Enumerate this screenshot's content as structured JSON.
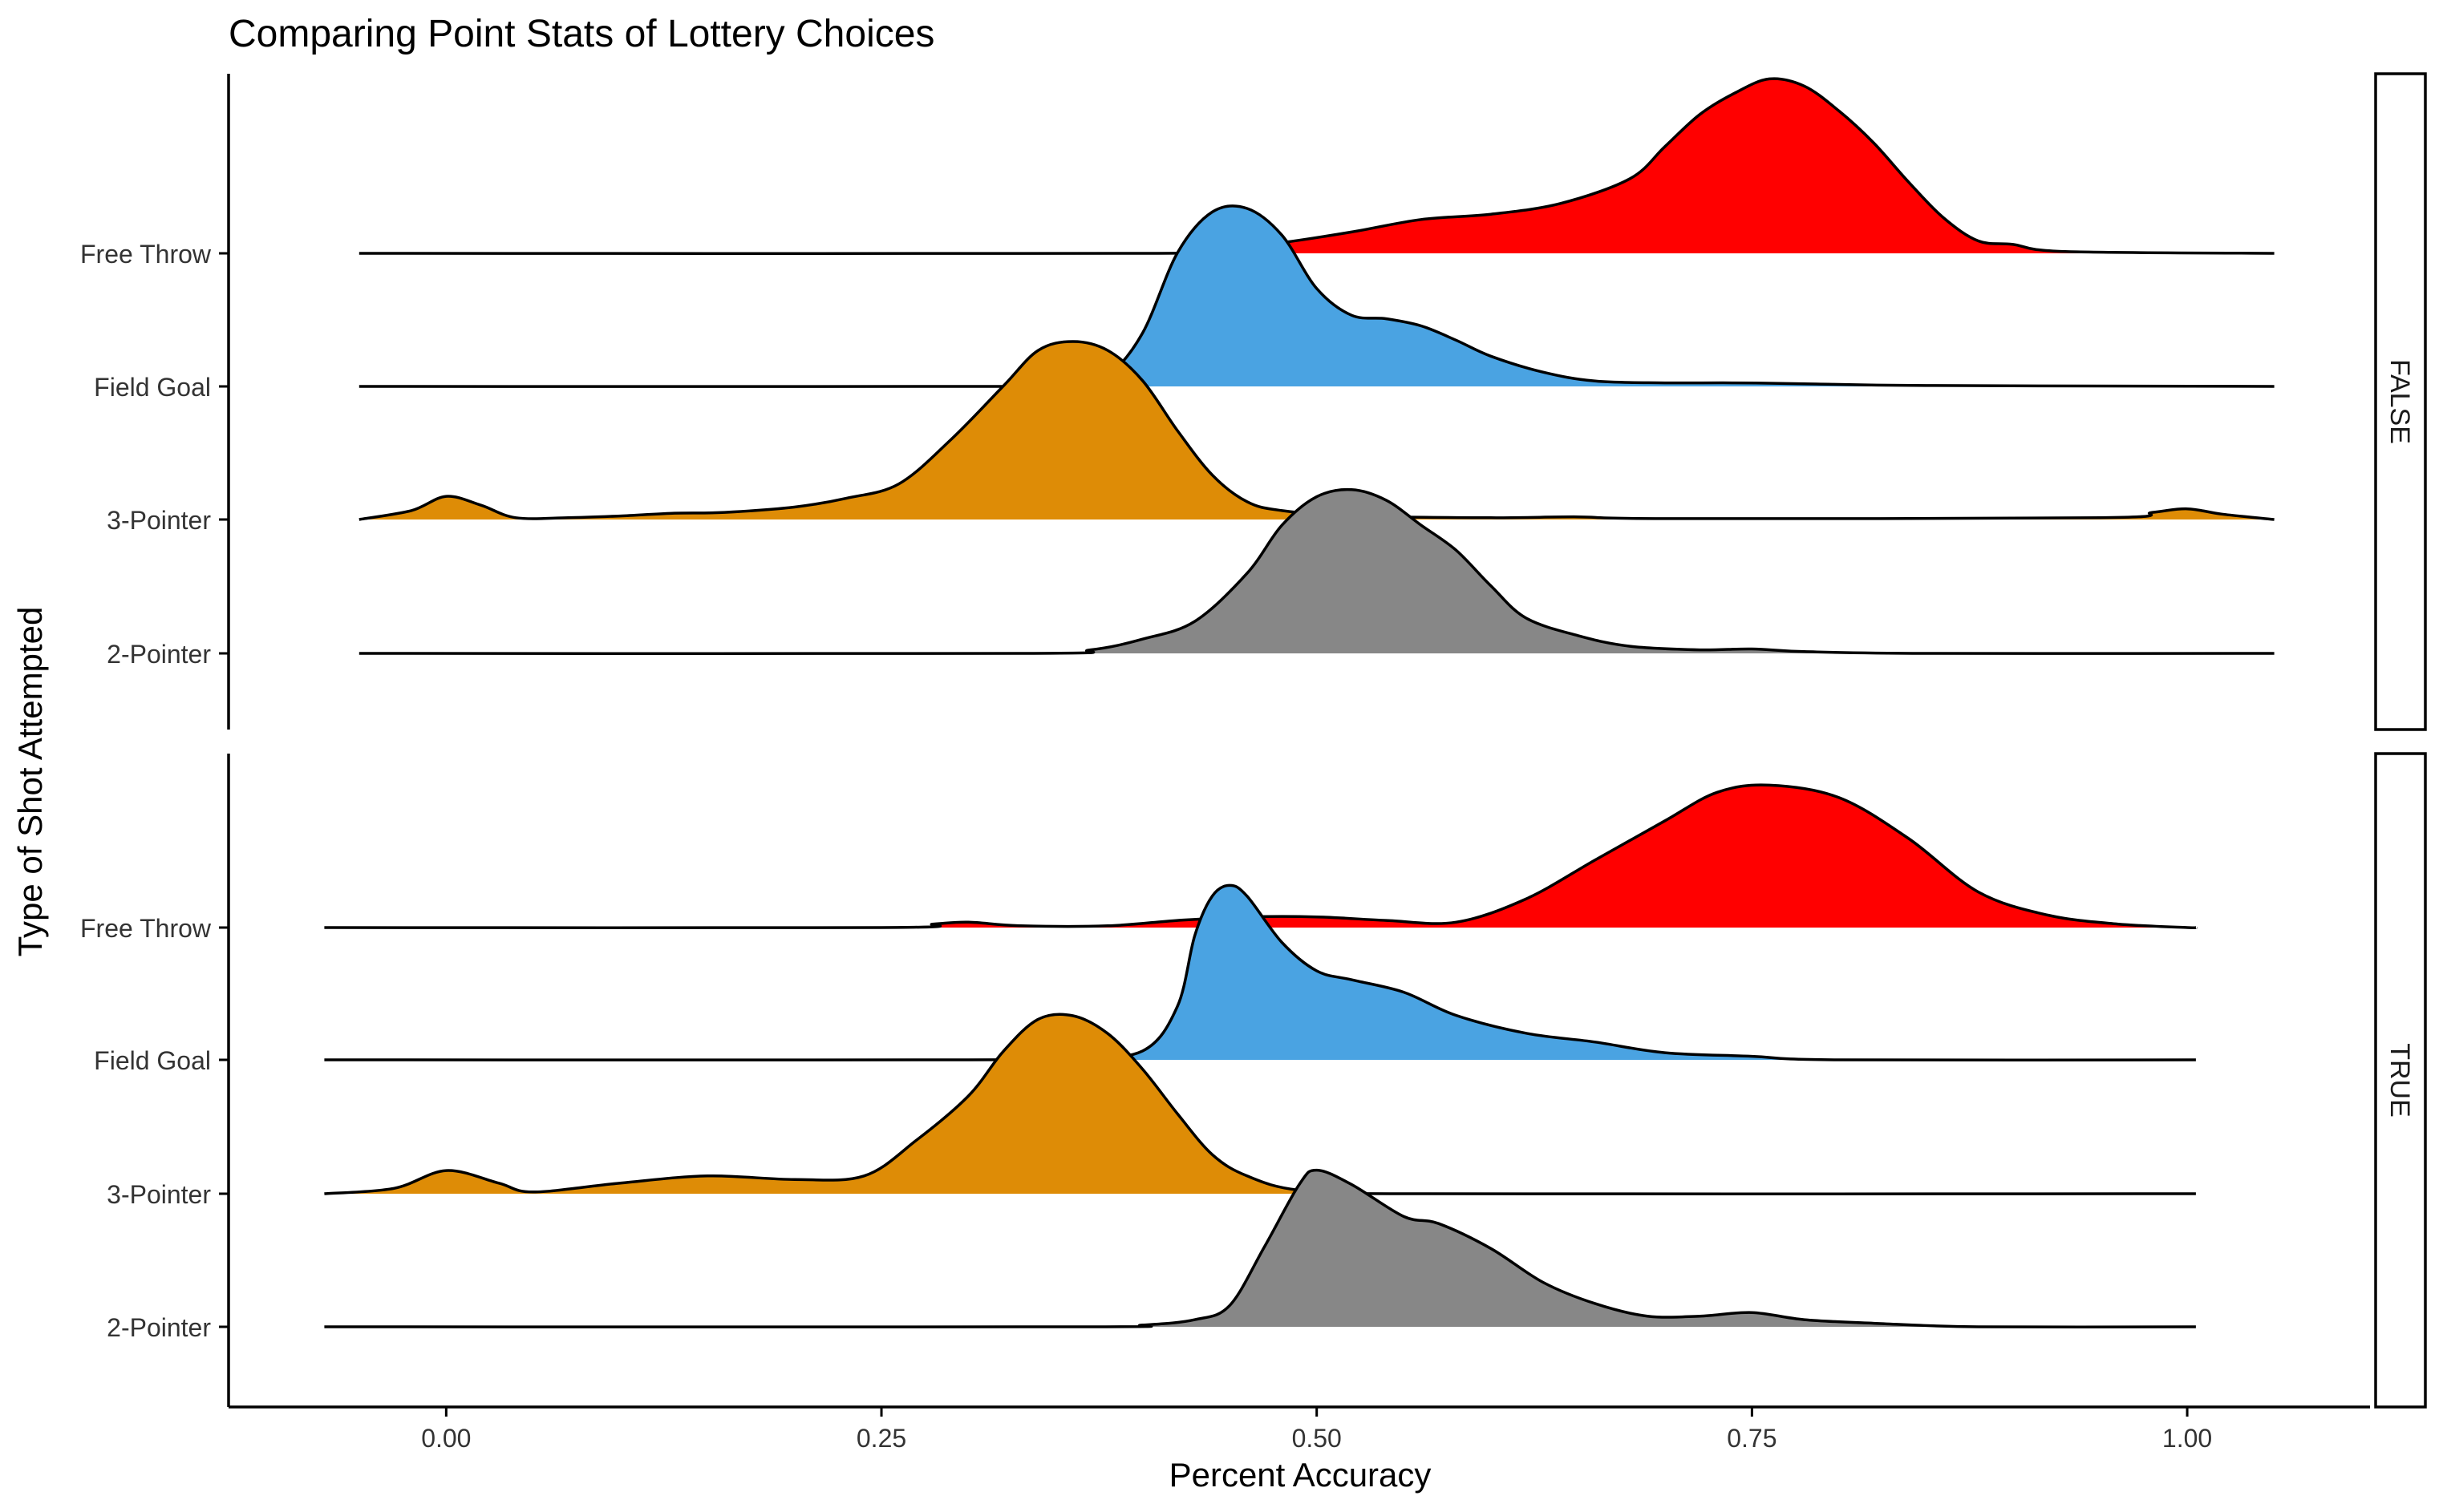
{
  "chart_data": {
    "type": "ridgeline",
    "title": "Comparing Point Stats of Lottery Choices",
    "xlabel": "Percent Accuracy",
    "ylabel": "Type of Shot Attempted",
    "xlim": [
      -0.125,
      1.105
    ],
    "xticks": [
      0,
      0.25,
      0.5,
      0.75,
      1.0
    ],
    "xtick_labels": [
      "0.00",
      "0.25",
      "0.50",
      "0.75",
      "1.00"
    ],
    "categories": [
      "2-Pointer",
      "3-Pointer",
      "Field Goal",
      "Free Throw"
    ],
    "colors": {
      "Free Throw": "#FF0000",
      "Field Goal": "#4AA3E2",
      "3-Pointer": "#DE8C06",
      "2-Pointer": "#878787"
    },
    "grid": false,
    "legend": "none",
    "facets": [
      {
        "label": "FALSE",
        "range": [
          -0.05,
          1.05
        ],
        "series": [
          {
            "name": "2-Pointer",
            "points": [
              [
                -0.05,
                0
              ],
              [
                0.33,
                0
              ],
              [
                0.37,
                0.02
              ],
              [
                0.4,
                0.08
              ],
              [
                0.43,
                0.18
              ],
              [
                0.46,
                0.45
              ],
              [
                0.48,
                0.72
              ],
              [
                0.5,
                0.88
              ],
              [
                0.52,
                0.92
              ],
              [
                0.54,
                0.86
              ],
              [
                0.56,
                0.72
              ],
              [
                0.58,
                0.58
              ],
              [
                0.6,
                0.38
              ],
              [
                0.62,
                0.2
              ],
              [
                0.65,
                0.1
              ],
              [
                0.68,
                0.04
              ],
              [
                0.72,
                0.02
              ],
              [
                0.75,
                0.025
              ],
              [
                0.78,
                0.01
              ],
              [
                0.85,
                0
              ],
              [
                1.05,
                0
              ]
            ]
          },
          {
            "name": "3-Pointer",
            "points": [
              [
                -0.05,
                0
              ],
              [
                -0.02,
                0.05
              ],
              [
                0.0,
                0.13
              ],
              [
                0.02,
                0.08
              ],
              [
                0.04,
                0.01
              ],
              [
                0.07,
                0.01
              ],
              [
                0.1,
                0.02
              ],
              [
                0.13,
                0.035
              ],
              [
                0.16,
                0.04
              ],
              [
                0.2,
                0.07
              ],
              [
                0.23,
                0.12
              ],
              [
                0.26,
                0.2
              ],
              [
                0.29,
                0.45
              ],
              [
                0.32,
                0.75
              ],
              [
                0.34,
                0.95
              ],
              [
                0.36,
                1.0
              ],
              [
                0.38,
                0.95
              ],
              [
                0.4,
                0.78
              ],
              [
                0.42,
                0.5
              ],
              [
                0.44,
                0.25
              ],
              [
                0.46,
                0.1
              ],
              [
                0.48,
                0.05
              ],
              [
                0.52,
                0.02
              ],
              [
                0.6,
                0.01
              ],
              [
                0.65,
                0.015
              ],
              [
                0.7,
                0.005
              ],
              [
                0.95,
                0.01
              ],
              [
                0.98,
                0.04
              ],
              [
                1.0,
                0.06
              ],
              [
                1.02,
                0.03
              ],
              [
                1.05,
                0
              ]
            ]
          },
          {
            "name": "Field Goal",
            "points": [
              [
                -0.05,
                0
              ],
              [
                0.34,
                0
              ],
              [
                0.36,
                0.01
              ],
              [
                0.38,
                0.06
              ],
              [
                0.4,
                0.3
              ],
              [
                0.42,
                0.75
              ],
              [
                0.44,
                0.98
              ],
              [
                0.46,
                1.0
              ],
              [
                0.48,
                0.85
              ],
              [
                0.5,
                0.55
              ],
              [
                0.52,
                0.4
              ],
              [
                0.54,
                0.38
              ],
              [
                0.56,
                0.34
              ],
              [
                0.58,
                0.26
              ],
              [
                0.6,
                0.17
              ],
              [
                0.63,
                0.08
              ],
              [
                0.66,
                0.03
              ],
              [
                0.7,
                0.02
              ],
              [
                0.74,
                0.02
              ],
              [
                0.78,
                0.015
              ],
              [
                0.85,
                0.005
              ],
              [
                1.05,
                0
              ]
            ]
          },
          {
            "name": "Free Throw",
            "points": [
              [
                -0.05,
                0
              ],
              [
                0.4,
                0
              ],
              [
                0.44,
                0.02
              ],
              [
                0.48,
                0.06
              ],
              [
                0.52,
                0.12
              ],
              [
                0.56,
                0.19
              ],
              [
                0.6,
                0.22
              ],
              [
                0.64,
                0.28
              ],
              [
                0.68,
                0.42
              ],
              [
                0.7,
                0.6
              ],
              [
                0.72,
                0.78
              ],
              [
                0.74,
                0.9
              ],
              [
                0.76,
                0.98
              ],
              [
                0.78,
                0.94
              ],
              [
                0.8,
                0.8
              ],
              [
                0.82,
                0.62
              ],
              [
                0.84,
                0.4
              ],
              [
                0.86,
                0.2
              ],
              [
                0.88,
                0.07
              ],
              [
                0.9,
                0.05
              ],
              [
                0.93,
                0.01
              ],
              [
                1.05,
                0
              ]
            ]
          }
        ]
      },
      {
        "label": "TRUE",
        "range": [
          -0.07,
          1.005
        ],
        "series": [
          {
            "name": "2-Pointer",
            "points": [
              [
                -0.07,
                0
              ],
              [
                0.36,
                0
              ],
              [
                0.4,
                0.01
              ],
              [
                0.43,
                0.04
              ],
              [
                0.45,
                0.12
              ],
              [
                0.47,
                0.45
              ],
              [
                0.49,
                0.8
              ],
              [
                0.5,
                0.88
              ],
              [
                0.52,
                0.8
              ],
              [
                0.55,
                0.62
              ],
              [
                0.57,
                0.58
              ],
              [
                0.6,
                0.44
              ],
              [
                0.63,
                0.25
              ],
              [
                0.66,
                0.13
              ],
              [
                0.69,
                0.06
              ],
              [
                0.72,
                0.06
              ],
              [
                0.75,
                0.08
              ],
              [
                0.78,
                0.04
              ],
              [
                0.82,
                0.02
              ],
              [
                0.88,
                0
              ],
              [
                1.005,
                0
              ]
            ]
          },
          {
            "name": "3-Pointer",
            "points": [
              [
                -0.07,
                0
              ],
              [
                -0.03,
                0.03
              ],
              [
                0.0,
                0.13
              ],
              [
                0.03,
                0.06
              ],
              [
                0.05,
                0.01
              ],
              [
                0.1,
                0.06
              ],
              [
                0.15,
                0.1
              ],
              [
                0.2,
                0.08
              ],
              [
                0.24,
                0.1
              ],
              [
                0.27,
                0.3
              ],
              [
                0.3,
                0.55
              ],
              [
                0.32,
                0.8
              ],
              [
                0.34,
                0.98
              ],
              [
                0.36,
                1.0
              ],
              [
                0.38,
                0.9
              ],
              [
                0.4,
                0.7
              ],
              [
                0.42,
                0.45
              ],
              [
                0.44,
                0.22
              ],
              [
                0.46,
                0.1
              ],
              [
                0.49,
                0.02
              ],
              [
                0.55,
                0
              ],
              [
                1.005,
                0
              ]
            ]
          },
          {
            "name": "Field Goal",
            "points": [
              [
                -0.07,
                0
              ],
              [
                0.3,
                0
              ],
              [
                0.36,
                0.01
              ],
              [
                0.4,
                0.05
              ],
              [
                0.42,
                0.3
              ],
              [
                0.43,
                0.7
              ],
              [
                0.44,
                0.92
              ],
              [
                0.45,
                0.98
              ],
              [
                0.46,
                0.92
              ],
              [
                0.48,
                0.66
              ],
              [
                0.5,
                0.5
              ],
              [
                0.52,
                0.45
              ],
              [
                0.55,
                0.38
              ],
              [
                0.58,
                0.25
              ],
              [
                0.62,
                0.15
              ],
              [
                0.66,
                0.1
              ],
              [
                0.7,
                0.04
              ],
              [
                0.75,
                0.02
              ],
              [
                0.8,
                0
              ],
              [
                1.005,
                0
              ]
            ]
          },
          {
            "name": "Free Throw",
            "points": [
              [
                -0.07,
                0
              ],
              [
                0.25,
                0
              ],
              [
                0.28,
                0.02
              ],
              [
                0.3,
                0.03
              ],
              [
                0.33,
                0.01
              ],
              [
                0.38,
                0.01
              ],
              [
                0.42,
                0.04
              ],
              [
                0.46,
                0.06
              ],
              [
                0.5,
                0.06
              ],
              [
                0.54,
                0.04
              ],
              [
                0.58,
                0.03
              ],
              [
                0.62,
                0.16
              ],
              [
                0.66,
                0.38
              ],
              [
                0.7,
                0.6
              ],
              [
                0.73,
                0.76
              ],
              [
                0.76,
                0.8
              ],
              [
                0.8,
                0.73
              ],
              [
                0.84,
                0.5
              ],
              [
                0.88,
                0.2
              ],
              [
                0.92,
                0.07
              ],
              [
                0.96,
                0.02
              ],
              [
                1.0,
                0
              ],
              [
                1.005,
                0
              ]
            ]
          }
        ]
      }
    ]
  }
}
